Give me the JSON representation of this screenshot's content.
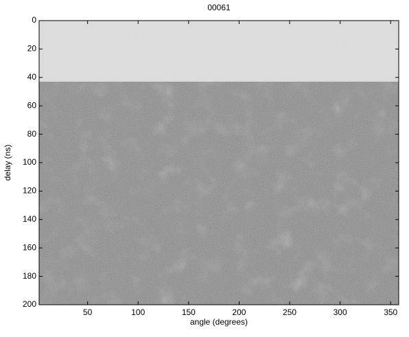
{
  "chart_data": {
    "type": "image",
    "title": "00061",
    "x_label": "angle (degrees)",
    "y_label": "delay (ns)",
    "xlim": [
      2,
      358
    ],
    "xticks": [
      50,
      100,
      150,
      200,
      250,
      300,
      350
    ],
    "ylim": [
      0,
      200
    ],
    "yticks": [
      0,
      20,
      40,
      60,
      80,
      100,
      120,
      140,
      160,
      180,
      200
    ],
    "y_reversed": true
  }
}
